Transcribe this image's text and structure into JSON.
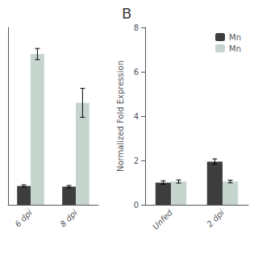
{
  "chart_data": [
    {
      "type": "bar",
      "categories": [
        "6 dpi",
        "8 dpi"
      ],
      "series": [
        {
          "color": "#3d3d3d",
          "values": [
            0.85,
            0.82
          ],
          "errors": [
            0.05,
            0.05
          ]
        },
        {
          "color": "#c5d5ce",
          "values": [
            6.8,
            4.6
          ],
          "errors": [
            0.25,
            0.65
          ]
        }
      ],
      "ylim": [
        0,
        8
      ],
      "tick_labels": "x",
      "grid": false
    },
    {
      "type": "bar",
      "title": "B",
      "ylabel": "Normalized Fold Expression",
      "categories": [
        "Unfed",
        "2 dpi"
      ],
      "series": [
        {
          "name": "Mn",
          "color": "#3d3d3d",
          "values": [
            1.0,
            1.95
          ],
          "errors": [
            0.08,
            0.12
          ]
        },
        {
          "name": "Mn",
          "color": "#c5d5ce",
          "values": [
            1.05,
            1.05
          ],
          "errors": [
            0.07,
            0.06
          ]
        }
      ],
      "ylim": [
        0,
        8
      ],
      "yticks": [
        0,
        2,
        4,
        6,
        8
      ],
      "grid": false,
      "legend": "upper right"
    }
  ]
}
